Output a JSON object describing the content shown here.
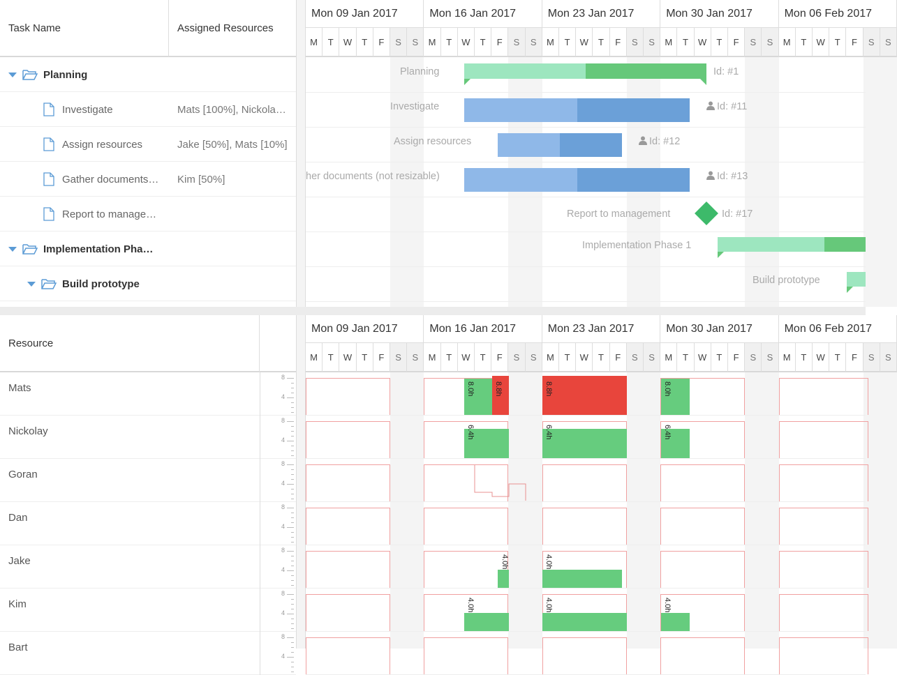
{
  "task_grid": {
    "headers": {
      "task_name": "Task Name",
      "assigned_resources": "Assigned Resources"
    },
    "rows": [
      {
        "name": "Planning",
        "resources": "",
        "type": "parent",
        "level": 0
      },
      {
        "name": "Investigate",
        "resources": "Mats [100%], Nickola…",
        "type": "leaf",
        "level": 1
      },
      {
        "name": "Assign resources",
        "resources": "Jake [50%], Mats [10%]",
        "type": "leaf",
        "level": 1
      },
      {
        "name": "Gather documents…",
        "resources": "Kim [50%]",
        "type": "leaf",
        "level": 1
      },
      {
        "name": "Report to manage…",
        "resources": "",
        "type": "leaf",
        "level": 1
      },
      {
        "name": "Implementation Pha…",
        "resources": "",
        "type": "parent",
        "level": 0
      },
      {
        "name": "Build prototype",
        "resources": "",
        "type": "parent",
        "level": 1
      }
    ]
  },
  "timeline": {
    "weeks": [
      "Mon 09 Jan 2017",
      "Mon 16 Jan 2017",
      "Mon 23 Jan 2017",
      "Mon 30 Jan 2017",
      "Mon 06 Feb 2017"
    ],
    "days": [
      "M",
      "T",
      "W",
      "T",
      "F",
      "S",
      "S"
    ]
  },
  "gantt": {
    "labels": {
      "planning": "Planning",
      "investigate": "Investigate",
      "assign": "Assign resources",
      "gather": "her documents (not resizable)",
      "report": "Report to management",
      "impl": "Implementation Phase 1",
      "build": "Build prototype"
    },
    "ids": {
      "planning": "Id: #1",
      "investigate": "Id: #11",
      "assign": "Id: #12",
      "gather": "Id: #13",
      "report": "Id: #17"
    }
  },
  "resource_grid": {
    "header": "Resource",
    "scale_high": "8",
    "scale_mid": "4",
    "resources": [
      "Mats",
      "Nickolay",
      "Goran",
      "Dan",
      "Jake",
      "Kim",
      "Bart"
    ]
  },
  "histogram_labels": {
    "mats_a": "8.0h",
    "mats_b": "8.8h",
    "mats_c": "8.8h",
    "mats_d": "8.0h",
    "nick_a": "6.4h",
    "nick_b": "6.4h",
    "nick_c": "6.4h",
    "jake_a": "4.0h",
    "jake_b": "4.0h",
    "kim_a": "4.0h",
    "kim_b": "4.0h",
    "kim_c": "4.0h"
  },
  "colors": {
    "accent": "#5b9bd5",
    "ok": "#66cc7e",
    "overload": "#e8453c",
    "planning_bar": "#9de6bf",
    "task_bar": "#8fb8e8"
  }
}
